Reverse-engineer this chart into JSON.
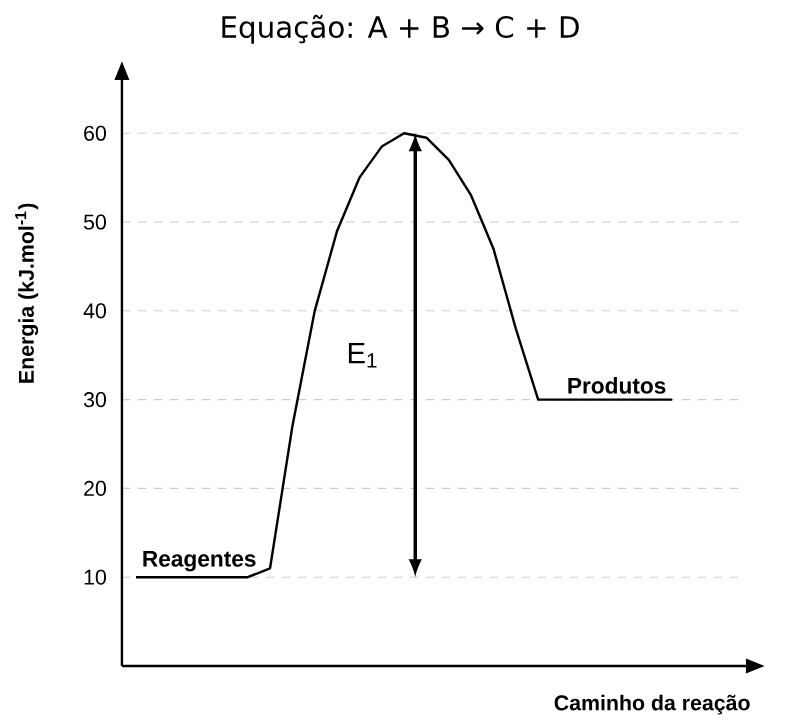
{
  "chart_data": {
    "type": "line",
    "title": "Equação: A + B → C + D",
    "xlabel": "Caminho da reação",
    "ylabel": "Energia (kJ.mol$^{-1}$)",
    "categories": [
      null,
      null,
      null,
      null,
      null,
      null,
      null,
      null,
      null,
      null,
      null,
      null,
      null,
      null,
      null,
      null,
      null,
      null,
      null,
      null,
      null,
      null,
      null,
      null,
      null
    ],
    "values": [
      10,
      10,
      10,
      10,
      10,
      10,
      11,
      27,
      40,
      49,
      55,
      58.5,
      60,
      59.5,
      57,
      53,
      47,
      38,
      30,
      30,
      30,
      30,
      30,
      30,
      30
    ],
    "color": "#000000",
    "ylim": [
      0,
      66
    ],
    "yticks": [
      10,
      20,
      30,
      40,
      50,
      60
    ],
    "grid": "y",
    "line_style": "solid",
    "annotations": [
      {
        "text": "Reagentes",
        "y": 10
      },
      {
        "text": "Produtos",
        "y": 30
      },
      "E$_{1}$"
    ]
  }
}
